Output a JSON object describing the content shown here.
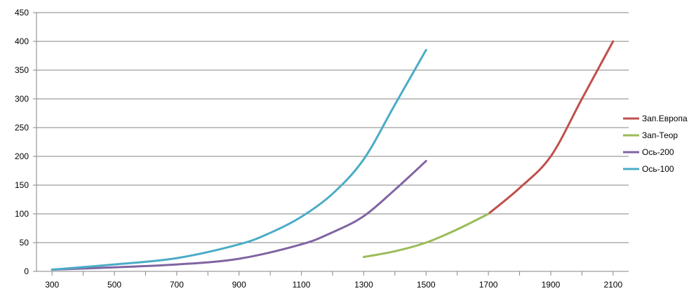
{
  "chart_data": {
    "type": "line",
    "title": "",
    "xlabel": "",
    "ylabel": "",
    "xlim": [
      250,
      2150
    ],
    "ylim": [
      0,
      450
    ],
    "x_ticks": [
      "300",
      "500",
      "700",
      "900",
      "1100",
      "1300",
      "1500",
      "1700",
      "1900",
      "2100"
    ],
    "y_ticks": [
      "0",
      "50",
      "100",
      "150",
      "200",
      "250",
      "300",
      "350",
      "400",
      "450"
    ],
    "grid": "horizontal",
    "legend_position": "right",
    "series": [
      {
        "name": "Зап.Европа",
        "color": "#c0504d",
        "points": [
          [
            1700,
            100
          ],
          [
            1800,
            145
          ],
          [
            1900,
            200
          ],
          [
            2000,
            300
          ],
          [
            2100,
            400
          ]
        ]
      },
      {
        "name": "Зап-Теор",
        "color": "#9bbb59",
        "points": [
          [
            1300,
            25
          ],
          [
            1400,
            35
          ],
          [
            1500,
            50
          ],
          [
            1600,
            73
          ],
          [
            1700,
            100
          ]
        ]
      },
      {
        "name": "Ось-200",
        "color": "#8064a2",
        "points": [
          [
            300,
            3
          ],
          [
            500,
            7
          ],
          [
            700,
            12
          ],
          [
            900,
            22
          ],
          [
            1100,
            47
          ],
          [
            1200,
            68
          ],
          [
            1300,
            96
          ],
          [
            1400,
            142
          ],
          [
            1500,
            192
          ]
        ]
      },
      {
        "name": "Ось-100",
        "color": "#4bacc6",
        "points": [
          [
            300,
            3
          ],
          [
            500,
            12
          ],
          [
            700,
            23
          ],
          [
            900,
            47
          ],
          [
            1000,
            67
          ],
          [
            1100,
            95
          ],
          [
            1200,
            135
          ],
          [
            1300,
            195
          ],
          [
            1400,
            290
          ],
          [
            1500,
            385
          ]
        ]
      }
    ]
  }
}
